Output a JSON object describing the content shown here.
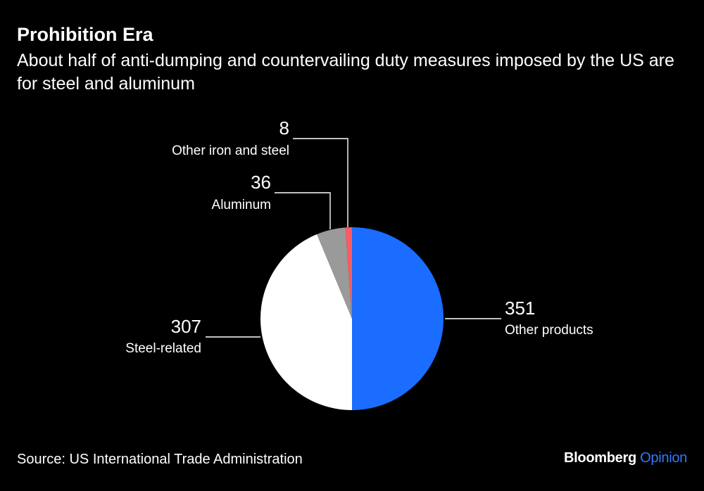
{
  "header": {
    "title": "Prohibition Era",
    "subtitle": "About half of anti-dumping and countervailing duty measures imposed by the US are for steel and aluminum"
  },
  "chart_data": {
    "type": "pie",
    "title": "Prohibition Era",
    "subtitle": "About half of anti-dumping and countervailing duty measures imposed by the US are for steel and aluminum",
    "start_angle_deg": 0,
    "direction": "clockwise",
    "slices": [
      {
        "label": "Other products",
        "value": 351,
        "color": "#1a6dff",
        "label_side": "right"
      },
      {
        "label": "Steel-related",
        "value": 307,
        "color": "#ffffff",
        "label_side": "left"
      },
      {
        "label": "Aluminum",
        "value": 36,
        "color": "#9a9a9a",
        "label_side": "top-left"
      },
      {
        "label": "Other iron and steel",
        "value": 8,
        "color": "#ff5a5f",
        "label_side": "top"
      }
    ]
  },
  "footer": {
    "source": "Source: US International Trade Administration",
    "brand_primary": "Bloomberg",
    "brand_secondary": "Opinion"
  }
}
